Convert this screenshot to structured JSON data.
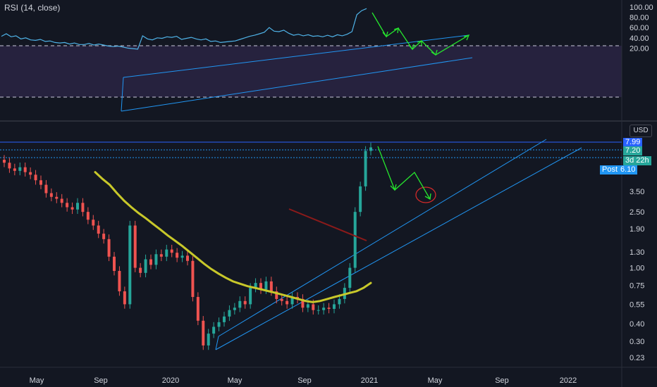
{
  "indicator": {
    "label": "RSI (14, close)"
  },
  "currency_label": "USD",
  "rsi_axis_ticks": [
    "100.00",
    "80.00",
    "60.00",
    "40.00",
    "20.00"
  ],
  "price_axis_ticks": [
    "3.50",
    "2.50",
    "1.90",
    "1.30",
    "1.00",
    "0.75",
    "0.55",
    "0.40",
    "0.30",
    "0.23"
  ],
  "time_axis_ticks": [
    "May",
    "Sep",
    "2020",
    "May",
    "Sep",
    "2021",
    "May",
    "Sep",
    "2022"
  ],
  "price_tags": [
    {
      "id": "last-high",
      "label": "7.99",
      "color": "#2962ff"
    },
    {
      "id": "last-close",
      "label": "7.20",
      "color": "#26a69a"
    },
    {
      "id": "countdown",
      "label": "3d 22h",
      "color": "#26a69a"
    },
    {
      "id": "post-market",
      "prefix": "Post",
      "label": "6.10",
      "color": "#2196f3"
    }
  ],
  "colors": {
    "background": "#131722",
    "up": "#26a69a",
    "down": "#ef5350",
    "ma": "#c8c82a",
    "channel": "#2196f3",
    "rsi_line": "#4fb3e8",
    "rsi_band": "#7e57c2",
    "arrows": "#26e62e",
    "annotation_circle": "#d22a2a",
    "dark_red_line": "#8b1a1a"
  },
  "chart_data": [
    {
      "type": "line",
      "panel": "rsi",
      "title": "RSI (14, close)",
      "ylim": [
        10,
        105
      ],
      "bands": [
        30,
        70
      ],
      "series": [
        {
          "values": [
            43,
            48,
            42,
            44,
            38,
            40,
            36,
            35,
            37,
            33,
            34,
            31,
            30,
            31,
            28,
            30,
            27,
            27,
            29,
            26,
            28,
            26,
            24,
            23,
            24,
            22,
            20,
            19,
            18,
            44,
            38,
            36,
            40,
            39,
            42,
            41,
            43,
            37,
            39,
            41,
            38,
            36,
            38,
            33,
            34,
            31,
            32,
            33,
            34,
            37,
            40,
            43,
            45,
            48,
            51,
            60,
            53,
            52,
            55,
            49,
            45,
            47,
            44,
            46,
            43,
            44,
            42,
            45,
            42,
            46,
            44,
            47,
            52,
            85,
            93,
            97
          ]
        }
      ]
    },
    {
      "type": "candlestick",
      "panel": "price",
      "scale": "log",
      "x_ticks": [
        "May",
        "Sep",
        "2020",
        "May",
        "Sep",
        "2021",
        "May",
        "Sep",
        "2022"
      ],
      "y_ticks": [
        0.23,
        0.3,
        0.4,
        0.55,
        0.75,
        1.0,
        1.3,
        1.9,
        2.5,
        3.5
      ],
      "ylim": [
        0.21,
        9.0
      ],
      "series": [
        {
          "name": "close",
          "values": [
            5.6,
            5.1,
            4.9,
            5.2,
            4.8,
            4.6,
            4.2,
            3.9,
            3.4,
            3.2,
            3.1,
            2.9,
            2.7,
            2.6,
            2.9,
            2.5,
            2.2,
            2.0,
            1.75,
            1.6,
            1.2,
            0.95,
            0.68,
            0.55,
            2.0,
            1.0,
            0.92,
            1.15,
            1.05,
            1.25,
            1.2,
            1.35,
            1.28,
            1.18,
            1.22,
            1.12,
            0.62,
            0.42,
            0.28,
            0.34,
            0.38,
            0.41,
            0.45,
            0.5,
            0.52,
            0.58,
            0.55,
            0.72,
            0.78,
            0.7,
            0.8,
            0.68,
            0.6,
            0.58,
            0.55,
            0.62,
            0.6,
            0.52,
            0.55,
            0.5,
            0.5,
            0.52,
            0.51,
            0.55,
            0.6,
            0.72,
            1.0,
            2.5,
            3.8,
            6.8,
            7.2
          ]
        },
        {
          "name": "moving average",
          "values": [
            null,
            null,
            null,
            null,
            null,
            null,
            null,
            null,
            null,
            null,
            null,
            null,
            null,
            null,
            null,
            null,
            null,
            4.8,
            4.3,
            3.9,
            3.4,
            3.0,
            2.7,
            2.45,
            2.25,
            2.05,
            1.87,
            1.7,
            1.56,
            1.43,
            1.3,
            1.18,
            1.07,
            0.98,
            0.91,
            0.85,
            0.8,
            0.77,
            0.74,
            0.72,
            0.7,
            0.68,
            0.66,
            0.64,
            0.62,
            0.6,
            0.58,
            0.57,
            0.58,
            0.6,
            0.62,
            0.64,
            0.66,
            0.68,
            0.72,
            0.78
          ]
        }
      ]
    }
  ]
}
